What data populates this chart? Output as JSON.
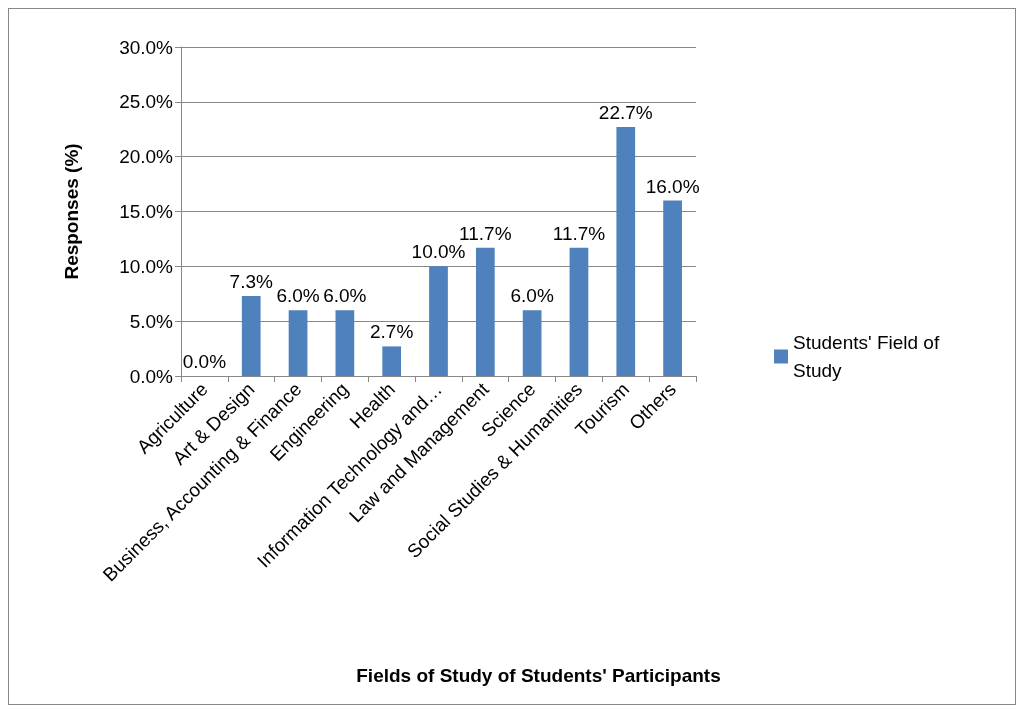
{
  "chart_data": {
    "type": "bar",
    "xlabel": "Fields of Study of Students' Participants",
    "ylabel": "Responses (%)",
    "categories": [
      "Agriculture",
      "Art & Design",
      "Business, Accounting & Finance",
      "Engineering",
      "Health",
      "Information Technology and…",
      "Law and Management",
      "Science",
      "Social Studies & Humanities",
      "Tourism",
      "Others"
    ],
    "series": [
      {
        "name": "Students' Field of Study",
        "color": "#4f81bd",
        "values": [
          0,
          7.3,
          6,
          6,
          2.7,
          10,
          11.7,
          6,
          11.7,
          22.7,
          16
        ],
        "value_labels": [
          "0.0%",
          "7.3%",
          "6.0%",
          "6.0%",
          "2.7%",
          "10.0%",
          "11.7%",
          "6.0%",
          "11.7%",
          "22.7%",
          "16.0%"
        ]
      }
    ],
    "ylim": [
      0,
      30
    ],
    "yticks": [
      {
        "value": 0,
        "label": "0.0%"
      },
      {
        "value": 5,
        "label": "5.0%"
      },
      {
        "value": 10,
        "label": "10.0%"
      },
      {
        "value": 15,
        "label": "15.0%"
      },
      {
        "value": 20,
        "label": "20.0%"
      },
      {
        "value": 25,
        "label": "25.0%"
      },
      {
        "value": 30,
        "label": "30.0%"
      }
    ],
    "grid": "y",
    "legend": "right"
  }
}
